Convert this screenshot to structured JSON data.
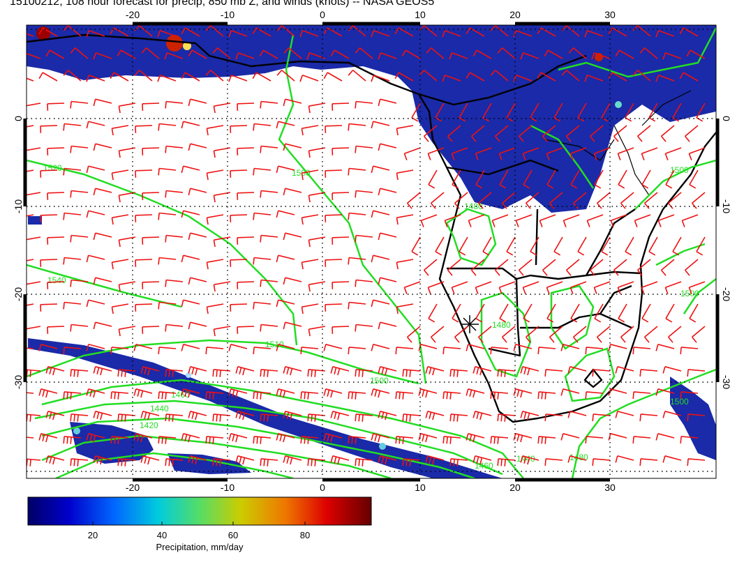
{
  "title": "15100212, 108 hour forecast for precip, 850 mb Z, and winds (knots) -- NASA GEOS5",
  "axes": {
    "x_ticks": [
      "-20",
      "-10",
      "0",
      "10",
      "20",
      "30"
    ],
    "y_ticks": [
      "0",
      "-10",
      "-20",
      "-30"
    ],
    "lon_range": [
      -30,
      42
    ],
    "lat_range": [
      5,
      -40
    ]
  },
  "colorbar": {
    "label": "Precipitation, mm/day",
    "ticks": [
      "20",
      "40",
      "60",
      "80"
    ],
    "range": [
      0,
      100
    ]
  },
  "contours": {
    "color": "#22dd22",
    "labels": [
      "1520",
      "1500",
      "1540",
      "1510",
      "1500",
      "1460",
      "1440",
      "1420",
      "1480",
      "1440",
      "1480",
      "1500",
      "1500",
      "1480",
      "1500",
      "1460"
    ]
  },
  "colors": {
    "precip_low": "#1a2aa8",
    "precip_high": "#7a0000",
    "wind_barbs": "#ee1111",
    "coastline": "#000000"
  }
}
